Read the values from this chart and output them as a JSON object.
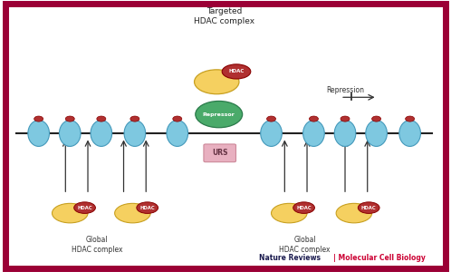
{
  "bg_color": "#ffffff",
  "border_color": "#9b0035",
  "border_lw": 5,
  "title": "Targeted\nHDAC complex",
  "journal_color_1": "#1a1a4e",
  "journal_color_2": "#cc0033",
  "repression_label": "Repression",
  "global_label": "Global\nHDAC complex",
  "hdac_color": "#b03030",
  "hdac_text": "HDAC",
  "yellow_color": "#f5d060",
  "green_color": "#4aaa6a",
  "pink_color": "#e8b0c0",
  "repressor_text": "Repressor",
  "urs_text": "URS",
  "dna_color": "#222222",
  "nucleosome_body_color": "#7ec8e0",
  "nuc_edge_color": "#4499bb",
  "cap_color": "#b03030"
}
